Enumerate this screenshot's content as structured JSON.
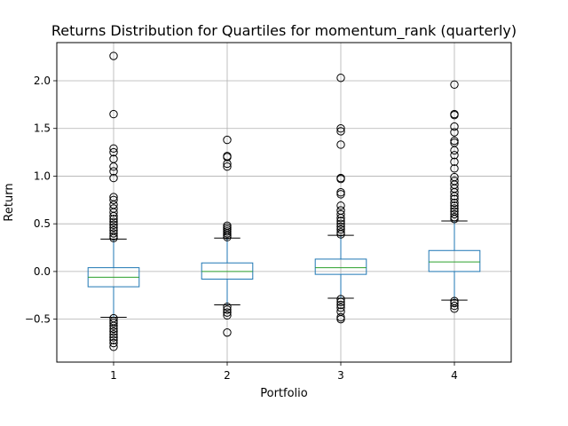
{
  "chart_data": {
    "type": "box",
    "title": "Returns Distribution for Quartiles for momentum_rank (quarterly)",
    "xlabel": "Portfolio",
    "ylabel": "Return",
    "categories": [
      "1",
      "2",
      "3",
      "4"
    ],
    "ylim": [
      -0.95,
      2.4
    ],
    "yticks": [
      -0.5,
      0.0,
      0.5,
      1.0,
      1.5,
      2.0
    ],
    "ytick_labels": [
      "−0.5",
      "0.0",
      "0.5",
      "1.0",
      "1.5",
      "2.0"
    ],
    "grid": true,
    "colors": {
      "box": "#1f77b4",
      "median": "#2ca02c",
      "whisker": "#1f77b4",
      "cap": "#000000",
      "flier": "#000000",
      "grid": "#b0b0b0"
    },
    "boxes": [
      {
        "category": "1",
        "whislo": -0.48,
        "q1": -0.16,
        "median": -0.06,
        "q3": 0.04,
        "whishi": 0.34,
        "fliers": [
          2.26,
          1.65,
          1.29,
          1.25,
          1.18,
          1.1,
          1.05,
          0.98,
          0.78,
          0.75,
          0.7,
          0.66,
          0.62,
          0.58,
          0.55,
          0.52,
          0.49,
          0.46,
          0.43,
          0.4,
          0.37,
          0.35,
          -0.49,
          -0.52,
          -0.54,
          -0.57,
          -0.6,
          -0.63,
          -0.66,
          -0.69,
          -0.72,
          -0.75,
          -0.79
        ]
      },
      {
        "category": "2",
        "whislo": -0.35,
        "q1": -0.08,
        "median": 0.0,
        "q3": 0.09,
        "whishi": 0.35,
        "fliers": [
          1.38,
          1.21,
          1.2,
          1.13,
          1.1,
          0.48,
          0.46,
          0.44,
          0.42,
          0.4,
          0.38,
          0.36,
          -0.37,
          -0.4,
          -0.43,
          -0.46,
          -0.64
        ]
      },
      {
        "category": "3",
        "whislo": -0.28,
        "q1": -0.03,
        "median": 0.04,
        "q3": 0.13,
        "whishi": 0.38,
        "fliers": [
          2.03,
          1.5,
          1.47,
          1.33,
          0.98,
          0.97,
          0.83,
          0.81,
          0.69,
          0.64,
          0.6,
          0.56,
          0.53,
          0.5,
          0.47,
          0.44,
          0.41,
          0.39,
          -0.29,
          -0.32,
          -0.35,
          -0.38,
          -0.42,
          -0.48,
          -0.5
        ]
      },
      {
        "category": "4",
        "whislo": -0.3,
        "q1": 0.0,
        "median": 0.1,
        "q3": 0.22,
        "whishi": 0.53,
        "fliers": [
          1.96,
          1.65,
          1.64,
          1.52,
          1.46,
          1.37,
          1.35,
          1.27,
          1.22,
          1.15,
          1.08,
          0.99,
          0.95,
          0.91,
          0.87,
          0.83,
          0.79,
          0.76,
          0.72,
          0.69,
          0.66,
          0.63,
          0.6,
          0.57,
          0.55,
          -0.31,
          -0.33,
          -0.36,
          -0.39
        ]
      }
    ]
  }
}
